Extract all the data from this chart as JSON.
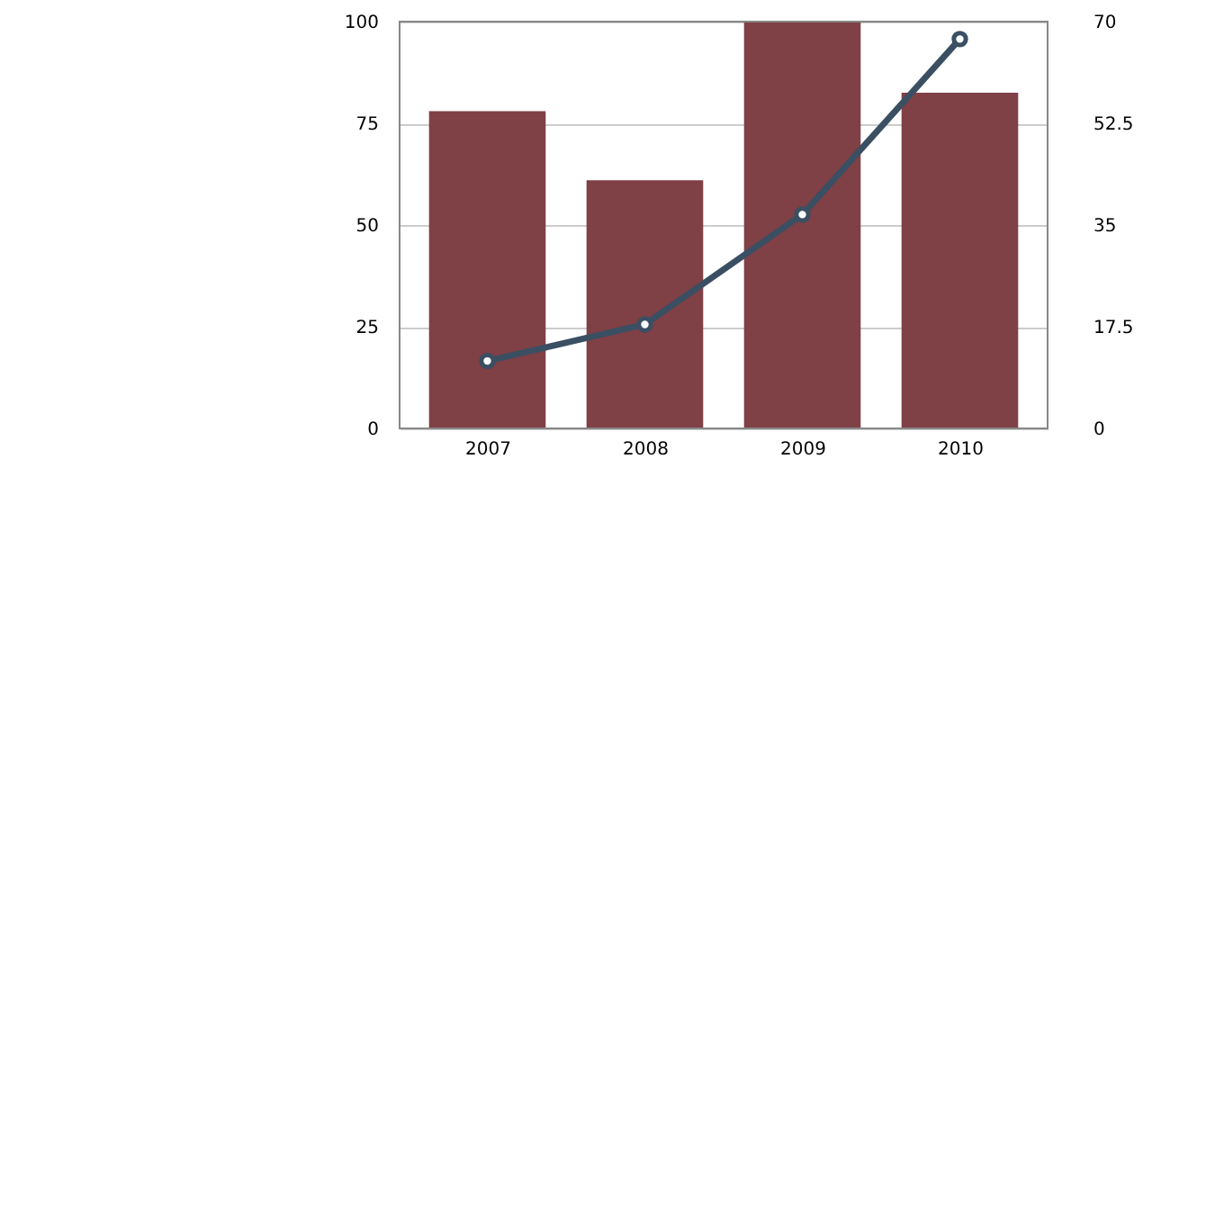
{
  "chart_data": {
    "type": "bar",
    "categories": [
      "2007",
      "2008",
      "2009",
      "2010"
    ],
    "series": [
      {
        "color": "#7f4046",
        "values": [
          78,
          61,
          100,
          82.5
        ]
      },
      {
        "type": "line",
        "axis": "y2",
        "color": "#3b4f63",
        "values": [
          11.6,
          17.9,
          36.8,
          67
        ],
        "marker": "circle",
        "line_style": "solid"
      }
    ],
    "ylim": [
      0,
      100
    ],
    "yticks": [
      0,
      25,
      50,
      75,
      100
    ],
    "y2lim": [
      0,
      70
    ],
    "y2ticks": [
      0,
      17.5,
      35,
      52.5,
      70
    ],
    "grid": "y"
  }
}
